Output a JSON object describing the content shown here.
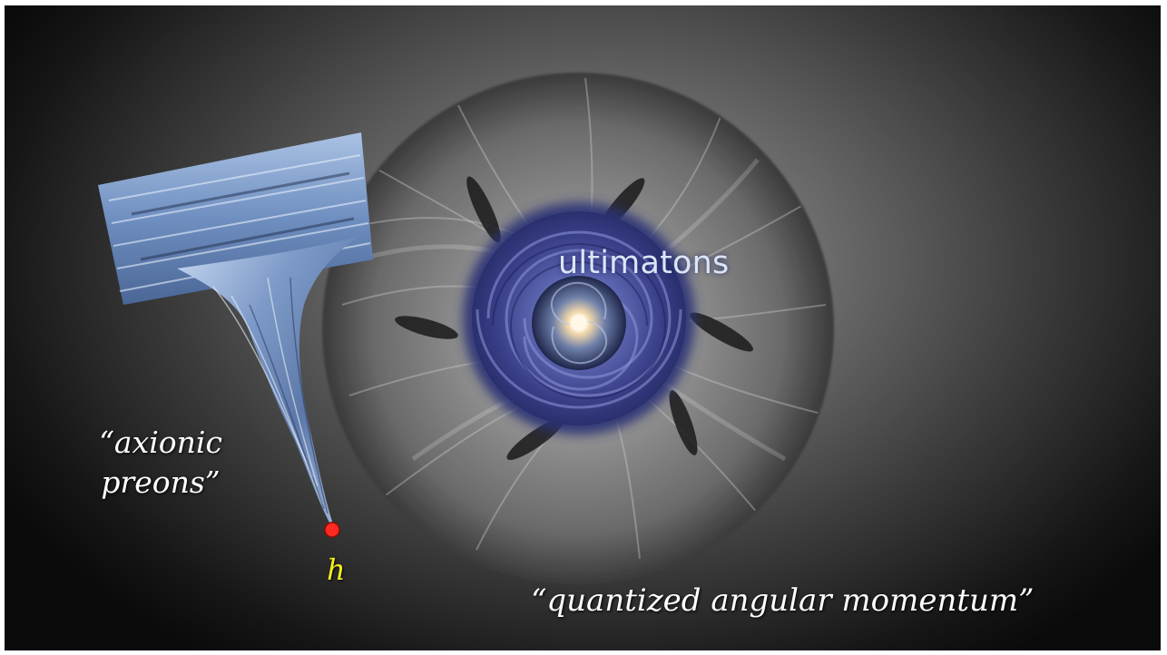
{
  "slide": {
    "center_label": "ultimatons",
    "left_label": "“axionic preons”",
    "point_label": "h",
    "bottom_label": "“quantized angular momentum”"
  },
  "colors": {
    "background_center": "#9a9a9a",
    "background_edge": "#0a0a0a",
    "vortex_blue": "#3f4d9a",
    "tornado_blue": "#7f9cc6",
    "point_red": "#ff2a1f",
    "point_label_yellow": "#f5ee1b",
    "text_white": "#ffffff"
  },
  "images": [
    "fibrous-disk-image",
    "blue-vortex-image",
    "spiral-galaxy-image",
    "tornado-funnel-image",
    "red-point-marker"
  ]
}
